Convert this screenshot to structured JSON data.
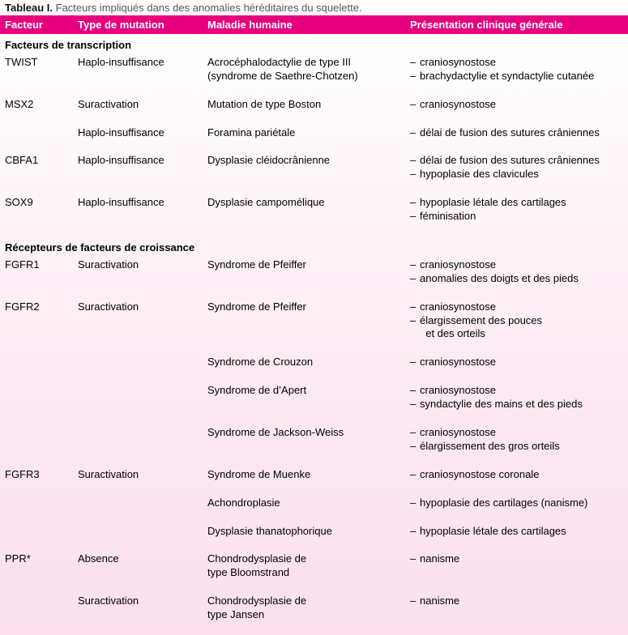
{
  "caption_label": "Tableau I.",
  "caption_text": "Facteurs impliqués dans des anomalies héréditaires du squelette.",
  "header": {
    "col1": "Facteur",
    "col2": "Type de mutation",
    "col3": "Maladie humaine",
    "col4": "Présentation clinique générale"
  },
  "colors": {
    "header_bg": "#e6007e",
    "header_fg": "#ffffff",
    "section_fg": "#000000",
    "body_bg_top": "#ffffff",
    "body_bg_bottom": "#fce0ee"
  },
  "sections": [
    {
      "title": "Facteurs de transcription",
      "rows": [
        {
          "factor": "TWIST",
          "mutation": "Haplo-insuffisance",
          "disease_lines": [
            "Acrocéphalodactylie de type III",
            "(syndrome de Saethre-Chotzen)"
          ],
          "presentation": [
            "craniosynostose",
            "brachydactylie et syndactylie cutanée"
          ]
        },
        {
          "factor": "MSX2",
          "mutation": "Suractivation",
          "disease_lines": [
            "Mutation de type Boston"
          ],
          "presentation": [
            "craniosynostose"
          ]
        },
        {
          "factor": "",
          "mutation": "Haplo-insuffisance",
          "disease_lines": [
            "Foramina pariétale"
          ],
          "presentation": [
            "délai de fusion des sutures crâniennes"
          ]
        },
        {
          "factor": "CBFA1",
          "mutation": "Haplo-insuffisance",
          "disease_lines": [
            "Dysplasie cléidocrânienne"
          ],
          "presentation": [
            "délai de fusion des sutures crâniennes",
            "hypoplasie des clavicules"
          ]
        },
        {
          "factor": "SOX9",
          "mutation": "Haplo-insuffisance",
          "disease_lines": [
            "Dysplasie campomélique"
          ],
          "presentation": [
            "hypoplasie létale des cartilages",
            "féminisation"
          ]
        }
      ]
    },
    {
      "title": "Récepteurs de facteurs de croissance",
      "rows": [
        {
          "factor": "FGFR1",
          "mutation": "Suractivation",
          "disease_lines": [
            "Syndrome de Pfeiffer"
          ],
          "presentation": [
            "craniosynostose",
            "anomalies des doigts et des pieds"
          ]
        },
        {
          "factor": "FGFR2",
          "mutation": "Suractivation",
          "disease_lines": [
            "Syndrome de Pfeiffer"
          ],
          "presentation": [
            "craniosynostose",
            "élargissement des pouces",
            "  et des orteils"
          ],
          "presentation_merge_last": true
        },
        {
          "factor": "",
          "mutation": "",
          "disease_lines": [
            "Syndrome de Crouzon"
          ],
          "presentation": [
            "craniosynostose"
          ]
        },
        {
          "factor": "",
          "mutation": "",
          "disease_lines": [
            "Syndrome de d’Apert"
          ],
          "presentation": [
            "craniosynostose",
            "syndactylie des mains et des pieds"
          ]
        },
        {
          "factor": "",
          "mutation": "",
          "disease_lines": [
            "Syndrome de Jackson-Weiss"
          ],
          "presentation": [
            "craniosynostose",
            "élargissement des gros orteils"
          ]
        },
        {
          "factor": "FGFR3",
          "mutation": "Suractivation",
          "disease_lines": [
            "Syndrome de Muenke"
          ],
          "presentation": [
            "craniosynostose coronale"
          ]
        },
        {
          "factor": "",
          "mutation": "",
          "disease_lines": [
            "Achondroplasie"
          ],
          "presentation": [
            "hypoplasie des cartilages (nanisme)"
          ]
        },
        {
          "factor": "",
          "mutation": "",
          "disease_lines": [
            "Dysplasie thanatophorique"
          ],
          "presentation": [
            "hypoplasie létale des cartilages"
          ]
        },
        {
          "factor": "PPR*",
          "mutation": "Absence",
          "disease_lines": [
            "Chondrodysplasie de",
            "type Bloomstrand"
          ],
          "presentation": [
            "nanisme"
          ]
        },
        {
          "factor": "",
          "mutation": "Suractivation",
          "disease_lines": [
            "Chondrodysplasie de",
            "type Jansen"
          ],
          "presentation": [
            "nanisme"
          ]
        }
      ]
    }
  ]
}
